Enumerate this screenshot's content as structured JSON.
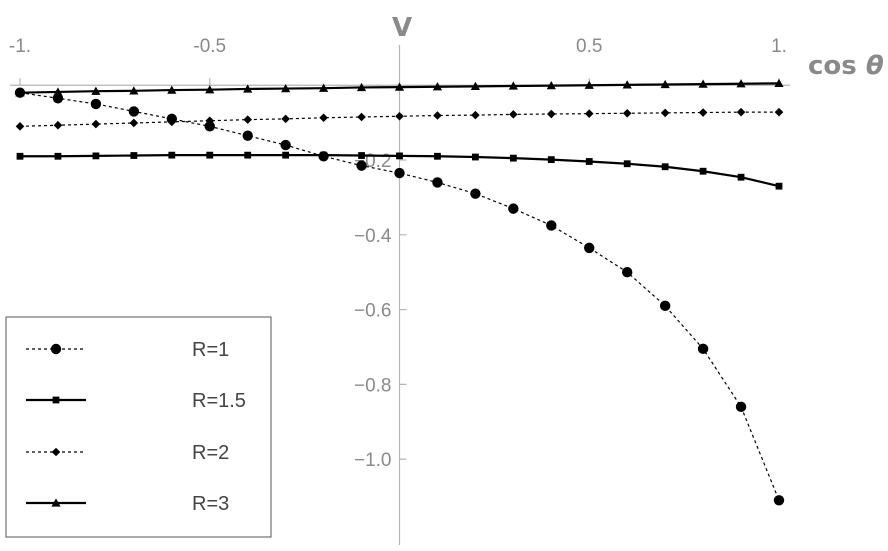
{
  "chart_data": {
    "type": "line",
    "xlabel_parts": [
      "cos ",
      "θ"
    ],
    "ylabel": "V",
    "xlim": [
      -1,
      1
    ],
    "ylim": [
      -1.16,
      0.03
    ],
    "x_ticks": [
      {
        "value": -1,
        "label": "-1."
      },
      {
        "value": -0.5,
        "label": "-0.5"
      },
      {
        "value": 0.5,
        "label": "0.5"
      },
      {
        "value": 1,
        "label": "1."
      }
    ],
    "y_ticks": [
      {
        "value": -0.2,
        "label": "-0.2"
      },
      {
        "value": -0.4,
        "label": "-0.4"
      },
      {
        "value": -0.6,
        "label": "-0.6"
      },
      {
        "value": -0.8,
        "label": "-0.8"
      },
      {
        "value": -1.0,
        "label": "-1.0"
      }
    ],
    "legend_position": "bottom-left",
    "x": [
      -1.0,
      -0.9,
      -0.8,
      -0.7,
      -0.6,
      -0.5,
      -0.4,
      -0.3,
      -0.2,
      -0.1,
      0.0,
      0.1,
      0.2,
      0.3,
      0.4,
      0.5,
      0.6,
      0.7,
      0.8,
      0.9,
      1.0
    ],
    "series": [
      {
        "name": "R=1",
        "line": "dotted",
        "marker": "circle",
        "values": [
          -0.02,
          -0.035,
          -0.05,
          -0.07,
          -0.09,
          -0.11,
          -0.135,
          -0.16,
          -0.19,
          -0.215,
          -0.235,
          -0.26,
          -0.29,
          -0.33,
          -0.375,
          -0.435,
          -0.5,
          -0.59,
          -0.705,
          -0.86,
          -1.11
        ]
      },
      {
        "name": "R=1.5",
        "line": "solid",
        "marker": "square",
        "values": [
          -0.19,
          -0.19,
          -0.189,
          -0.188,
          -0.187,
          -0.187,
          -0.187,
          -0.187,
          -0.187,
          -0.188,
          -0.189,
          -0.19,
          -0.192,
          -0.195,
          -0.199,
          -0.204,
          -0.21,
          -0.218,
          -0.23,
          -0.246,
          -0.27
        ]
      },
      {
        "name": "R=2",
        "line": "dotted",
        "marker": "diamond",
        "values": [
          -0.11,
          -0.107,
          -0.104,
          -0.101,
          -0.098,
          -0.095,
          -0.092,
          -0.09,
          -0.087,
          -0.085,
          -0.083,
          -0.081,
          -0.08,
          -0.078,
          -0.077,
          -0.076,
          -0.075,
          -0.074,
          -0.073,
          -0.072,
          -0.072
        ]
      },
      {
        "name": "R=3",
        "line": "solid",
        "marker": "triangle",
        "values": [
          -0.02,
          -0.018,
          -0.016,
          -0.015,
          -0.013,
          -0.012,
          -0.01,
          -0.009,
          -0.008,
          -0.006,
          -0.005,
          -0.004,
          -0.003,
          -0.002,
          -0.001,
          0.0,
          0.001,
          0.002,
          0.003,
          0.004,
          0.005
        ]
      }
    ]
  }
}
